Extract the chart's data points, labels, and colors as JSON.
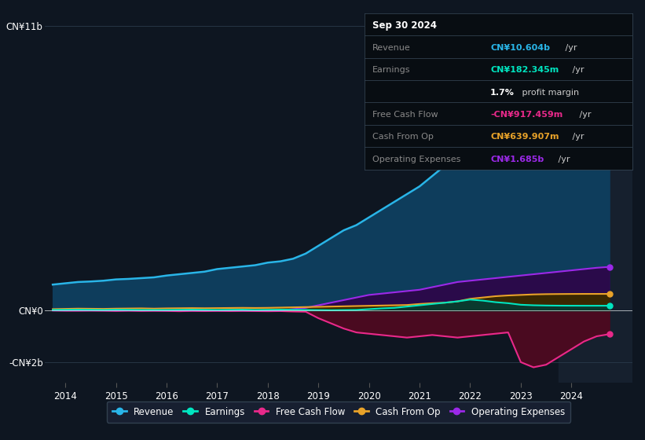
{
  "bg_color": "#0e1621",
  "plot_bg_color": "#0e1621",
  "years": [
    2013.75,
    2014.0,
    2014.25,
    2014.5,
    2014.75,
    2015.0,
    2015.25,
    2015.5,
    2015.75,
    2016.0,
    2016.25,
    2016.5,
    2016.75,
    2017.0,
    2017.25,
    2017.5,
    2017.75,
    2018.0,
    2018.25,
    2018.5,
    2018.75,
    2019.0,
    2019.25,
    2019.5,
    2019.75,
    2020.0,
    2020.25,
    2020.5,
    2020.75,
    2021.0,
    2021.25,
    2021.5,
    2021.75,
    2022.0,
    2022.25,
    2022.5,
    2022.75,
    2023.0,
    2023.25,
    2023.5,
    2023.75,
    2024.0,
    2024.25,
    2024.5,
    2024.75
  ],
  "revenue": [
    1.0,
    1.05,
    1.1,
    1.12,
    1.15,
    1.2,
    1.22,
    1.25,
    1.28,
    1.35,
    1.4,
    1.45,
    1.5,
    1.6,
    1.65,
    1.7,
    1.75,
    1.85,
    1.9,
    2.0,
    2.2,
    2.5,
    2.8,
    3.1,
    3.3,
    3.6,
    3.9,
    4.2,
    4.5,
    4.8,
    5.2,
    5.6,
    5.8,
    6.5,
    7.2,
    7.8,
    8.3,
    8.8,
    9.2,
    9.5,
    9.8,
    10.0,
    10.2,
    10.5,
    10.604
  ],
  "earnings": [
    0.02,
    0.025,
    0.03,
    0.025,
    0.02,
    0.03,
    0.025,
    0.02,
    0.018,
    0.02,
    0.025,
    0.03,
    0.025,
    0.02,
    0.025,
    0.03,
    0.02,
    0.025,
    0.03,
    0.025,
    0.02,
    0.015,
    0.01,
    0.015,
    0.02,
    0.05,
    0.08,
    0.1,
    0.15,
    0.2,
    0.25,
    0.3,
    0.35,
    0.42,
    0.38,
    0.32,
    0.28,
    0.22,
    0.2,
    0.19,
    0.185,
    0.183,
    0.182,
    0.182,
    0.182345
  ],
  "free_cash_flow": [
    0.0,
    -0.01,
    -0.01,
    -0.005,
    -0.01,
    -0.02,
    -0.01,
    -0.02,
    -0.015,
    -0.02,
    -0.03,
    -0.02,
    -0.025,
    -0.02,
    -0.025,
    -0.02,
    -0.025,
    -0.03,
    -0.025,
    -0.04,
    -0.05,
    -0.3,
    -0.5,
    -0.7,
    -0.85,
    -0.9,
    -0.95,
    -1.0,
    -1.05,
    -1.0,
    -0.95,
    -1.0,
    -1.05,
    -1.0,
    -0.95,
    -0.9,
    -0.85,
    -2.0,
    -2.2,
    -2.1,
    -1.8,
    -1.5,
    -1.2,
    -1.0,
    -0.917
  ],
  "cash_from_op": [
    0.05,
    0.06,
    0.07,
    0.065,
    0.06,
    0.07,
    0.075,
    0.08,
    0.07,
    0.08,
    0.085,
    0.09,
    0.085,
    0.09,
    0.095,
    0.1,
    0.095,
    0.1,
    0.11,
    0.12,
    0.13,
    0.14,
    0.15,
    0.16,
    0.17,
    0.18,
    0.19,
    0.2,
    0.21,
    0.25,
    0.28,
    0.3,
    0.35,
    0.45,
    0.5,
    0.55,
    0.58,
    0.6,
    0.62,
    0.63,
    0.635,
    0.638,
    0.64,
    0.64,
    0.63991
  ],
  "operating_expenses": [
    0.0,
    0.0,
    0.0,
    0.0,
    0.0,
    0.0,
    0.0,
    0.0,
    0.0,
    0.0,
    0.0,
    0.0,
    0.0,
    0.0,
    0.0,
    0.0,
    0.0,
    0.0,
    0.0,
    0.05,
    0.1,
    0.2,
    0.3,
    0.4,
    0.5,
    0.6,
    0.65,
    0.7,
    0.75,
    0.8,
    0.9,
    1.0,
    1.1,
    1.15,
    1.2,
    1.25,
    1.3,
    1.35,
    1.4,
    1.45,
    1.5,
    1.55,
    1.6,
    1.65,
    1.685
  ],
  "revenue_color": "#29b5e8",
  "earnings_color": "#00e5c0",
  "fcf_color": "#e8298a",
  "cashop_color": "#e8a229",
  "opex_color": "#9b29e8",
  "revenue_fill": "#0e3d5c",
  "earnings_fill": "#0a3a2e",
  "fcf_fill": "#4a0a20",
  "cashop_fill": "#3a2800",
  "opex_fill": "#2a0a4a",
  "highlight_start": 2023.75,
  "highlight_end": 2025.2,
  "highlight_color": "#16202e",
  "xmin": 2013.6,
  "xmax": 2025.2,
  "ymin": -2.8,
  "ymax": 11.5,
  "yticks": [
    -2.0,
    0.0,
    11.0
  ],
  "ytick_labels": [
    "-CN¥2b",
    "CN¥0",
    "CN¥11b"
  ],
  "xticks": [
    2014,
    2015,
    2016,
    2017,
    2018,
    2019,
    2020,
    2021,
    2022,
    2023,
    2024
  ],
  "legend_items": [
    "Revenue",
    "Earnings",
    "Free Cash Flow",
    "Cash From Op",
    "Operating Expenses"
  ],
  "legend_colors": [
    "#29b5e8",
    "#00e5c0",
    "#e8298a",
    "#e8a229",
    "#9b29e8"
  ],
  "info_box": {
    "title": "Sep 30 2024",
    "rows": [
      {
        "label": "Revenue",
        "value": "CN¥10.604b",
        "unit": " /yr",
        "value_color": "#29b5e8"
      },
      {
        "label": "Earnings",
        "value": "CN¥182.345m",
        "unit": " /yr",
        "value_color": "#00e5c0"
      },
      {
        "label": "",
        "value": "1.7%",
        "unit": " profit margin",
        "value_color": "#ffffff"
      },
      {
        "label": "Free Cash Flow",
        "value": "-CN¥917.459m",
        "unit": " /yr",
        "value_color": "#e8298a"
      },
      {
        "label": "Cash From Op",
        "value": "CN¥639.907m",
        "unit": " /yr",
        "value_color": "#e8a229"
      },
      {
        "label": "Operating Expenses",
        "value": "CN¥1.685b",
        "unit": " /yr",
        "value_color": "#9b29e8"
      }
    ]
  }
}
